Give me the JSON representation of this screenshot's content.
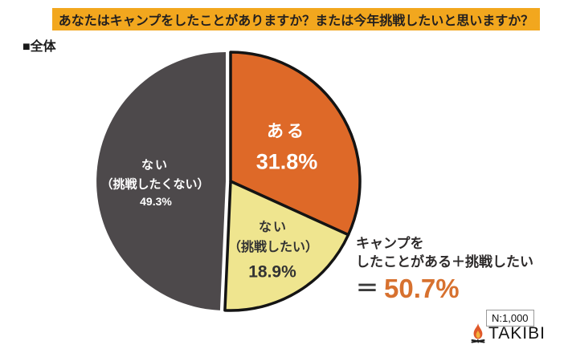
{
  "banner": {
    "title": "あなたはキャンプをしたことがありますか？または今年挑戦したいと思いますか？",
    "bg_color": "#F2A71E"
  },
  "group": {
    "label": "■全体"
  },
  "chart_data": {
    "type": "pie",
    "title": "あなたはキャンプをしたことがありますか？または今年挑戦したいと思いますか？",
    "group_label": "全体",
    "direction": "clockwise",
    "start_angle_deg": 0,
    "categories": [
      "ある",
      "ない（挑戦したい）",
      "ない（挑戦したくない）"
    ],
    "values": [
      31.8,
      18.9,
      49.3
    ],
    "slices": [
      {
        "name": "ある",
        "line1": "ある",
        "line2": "",
        "pct": "31.8%",
        "value": 31.8,
        "color": "#DE6928",
        "text_color": "#FFFFFF",
        "outlined": true
      },
      {
        "name": "ない（挑戦したい）",
        "line1": "ない",
        "line2": "（挑戦したい）",
        "pct": "18.9%",
        "value": 18.9,
        "color": "#EFE58F",
        "text_color": "#333333",
        "outlined": true
      },
      {
        "name": "ない（挑戦したくない）",
        "line1": "ない",
        "line2": "（挑戦したくない）",
        "pct": "49.3%",
        "value": 49.3,
        "color": "#4D494B",
        "text_color": "#FFFFFF",
        "outlined": false
      }
    ],
    "annotation": {
      "line1": "キャンプを",
      "line2": "したことがある＋挑戦したい",
      "equals": "＝",
      "value": "50.7%",
      "value_color": "#D7712F"
    },
    "outline_color": "#141414"
  },
  "footer": {
    "sample_size": "N:1,000",
    "brand": "TAKIBI",
    "brand_icon": "campfire-icon"
  }
}
